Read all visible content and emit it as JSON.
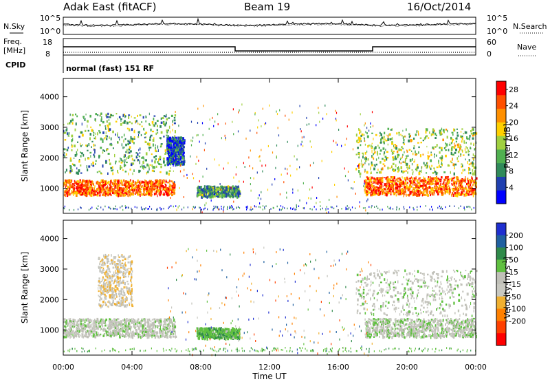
{
  "header": {
    "radar": "Adak East (fitACF)",
    "beam": "Beam 19",
    "date": "16/Oct/2014"
  },
  "noise_panel": {
    "left_label": "N.Sky",
    "right_label": "N.Search",
    "left_ticks": [
      "10^5",
      "10^0"
    ],
    "right_ticks": [
      "10^5",
      "10^0"
    ]
  },
  "freq_panel": {
    "left_label_line1": "Freq.",
    "left_label_line2": "[MHz]",
    "right_label": "Nave",
    "left_ticks": [
      "18",
      "8"
    ],
    "right_ticks": [
      "60",
      "0"
    ],
    "freq_high_mhz": 13,
    "freq_low_mhz": 10.5,
    "freq_steps": [
      {
        "start": "00:00",
        "end": "10:00",
        "mhz": 13
      },
      {
        "start": "10:00",
        "end": "18:00",
        "mhz": 10.5
      },
      {
        "start": "18:00",
        "end": "24:00",
        "mhz": 13
      }
    ]
  },
  "cpid": {
    "label": "CPID",
    "value": "normal (fast) 151 RF"
  },
  "colors": {
    "power": [
      "#0000ff",
      "#2040b0",
      "#308a5a",
      "#50b050",
      "#a0d040",
      "#ffd000",
      "#ff9000",
      "#ff5000",
      "#ff0000"
    ],
    "velocity": [
      "#1f2fd0",
      "#2060a0",
      "#2f8a4a",
      "#60c040",
      "#c0c0b8",
      "#c8c8c0",
      "#f0b030",
      "#ff8000",
      "#ff4000",
      "#ff0000"
    ]
  },
  "chart_data": [
    {
      "type": "heatmap",
      "title": "Power",
      "xlabel": "",
      "ylabel": "Slant Range [km]",
      "xlim": [
        "00:00",
        "24:00"
      ],
      "ylim": [
        180,
        4600
      ],
      "yticks": [
        "1000",
        "2000",
        "3000",
        "4000"
      ],
      "colorbar": {
        "label": "Power [dB]",
        "ticks": [
          "4",
          "8",
          "12",
          "16",
          "20",
          "24",
          "28"
        ],
        "range": [
          0,
          30
        ]
      },
      "features": [
        {
          "name": "morning band",
          "start": "00:00",
          "end": "06:30",
          "range_km": [
            800,
            1300
          ],
          "power_db": 24
        },
        {
          "name": "morning upper echoes",
          "start": "00:00",
          "end": "06:30",
          "range_km": [
            1500,
            3500
          ],
          "power_db": 12
        },
        {
          "name": "evening band",
          "start": "17:30",
          "end": "24:00",
          "range_km": [
            800,
            1400
          ],
          "power_db": 24
        },
        {
          "name": "evening upper echoes",
          "start": "17:00",
          "end": "24:00",
          "range_km": [
            1500,
            3000
          ],
          "power_db": 14
        },
        {
          "name": "midday patch",
          "start": "07:45",
          "end": "10:15",
          "range_km": [
            750,
            1100
          ],
          "power_db": 10
        },
        {
          "name": "pre-dawn streak",
          "start": "06:00",
          "end": "07:00",
          "range_km": [
            1800,
            2700
          ],
          "power_db": 6
        }
      ]
    },
    {
      "type": "heatmap",
      "title": "Velocity",
      "xlabel": "Time UT",
      "ylabel": "Slant Range [km]",
      "xlim": [
        "00:00",
        "24:00"
      ],
      "ylim": [
        180,
        4600
      ],
      "xticks": [
        "00:00",
        "04:00",
        "08:00",
        "12:00",
        "16:00",
        "20:00",
        "00:00"
      ],
      "yticks": [
        "1000",
        "2000",
        "3000",
        "4000"
      ],
      "colorbar": {
        "label": "Velocity [m s^-1]",
        "ticks": [
          "200",
          "100",
          "50",
          "15",
          "-15",
          "-50",
          "-100",
          "-200"
        ],
        "range": [
          -250,
          250
        ]
      },
      "features": [
        {
          "name": "morning band",
          "start": "00:00",
          "end": "06:30",
          "range_km": [
            800,
            1400
          ],
          "velocity_ms": 0
        },
        {
          "name": "morning arc",
          "start": "02:00",
          "end": "04:00",
          "range_km": [
            1800,
            3500
          ],
          "velocity_ms": -40
        },
        {
          "name": "evening band",
          "start": "17:30",
          "end": "24:00",
          "range_km": [
            800,
            1400
          ],
          "velocity_ms": 0
        },
        {
          "name": "evening upper echoes",
          "start": "17:00",
          "end": "24:00",
          "range_km": [
            1500,
            3000
          ],
          "velocity_ms": 0
        },
        {
          "name": "midday patch",
          "start": "07:45",
          "end": "10:15",
          "range_km": [
            750,
            1100
          ],
          "velocity_ms": 40
        }
      ]
    }
  ]
}
